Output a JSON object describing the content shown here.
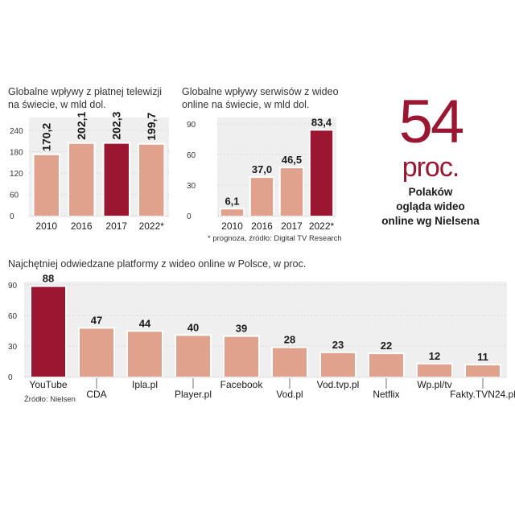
{
  "colors": {
    "bar": "#e0a28c",
    "highlight": "#9b1630",
    "panel": "#efefef",
    "grid": "#cfcfcf"
  },
  "stat": {
    "number": "54",
    "unit": "proc.",
    "caption_line1": "Polaków",
    "caption_line2": "ogląda wideo",
    "caption_line3": "online wg Nielsena"
  },
  "footnote": "* prognoza, źródło: Digital TV Research",
  "source": "Źródło: Nielsen",
  "chart_data": [
    {
      "type": "bar",
      "title_line1": "Globalne wpływy z płatnej telewizji",
      "title_line2": "na świecie, w mld dol.",
      "categories": [
        "2010",
        "2016",
        "2017",
        "2022*"
      ],
      "values": [
        170.2,
        202.1,
        202.3,
        199.7
      ],
      "value_labels": [
        "170,2",
        "202,1",
        "202,3",
        "199,7"
      ],
      "highlight_index": 2,
      "yticks": [
        "240",
        "180",
        "120",
        "60",
        "0"
      ],
      "ylim": [
        0,
        240
      ],
      "grid": true
    },
    {
      "type": "bar",
      "title_line1": "Globalne wpływy serwisów z wideo",
      "title_line2": "online na świecie, w mld dol.",
      "categories": [
        "2010",
        "2016",
        "2017",
        "2022*"
      ],
      "values": [
        6.1,
        37.0,
        46.5,
        83.4
      ],
      "value_labels": [
        "6,1",
        "37,0",
        "46,5",
        "83,4"
      ],
      "highlight_index": 3,
      "yticks": [
        "90",
        "60",
        "30",
        "0"
      ],
      "ylim": [
        0,
        90
      ],
      "grid": true
    },
    {
      "type": "bar",
      "title": "Najchętniej odwiedzane platformy z wideo online w Polsce, w proc.",
      "categories": [
        "YouTube",
        "CDA",
        "Ipla.pl",
        "Player.pl",
        "Facebook",
        "Vod.pl",
        "Vod.tvp.pl",
        "Netflix",
        "Wp.pl/tv",
        "Fakty.TVN24.pl"
      ],
      "values": [
        88,
        47,
        44,
        40,
        39,
        28,
        23,
        22,
        12,
        11
      ],
      "value_labels": [
        "88",
        "47",
        "44",
        "40",
        "39",
        "28",
        "23",
        "22",
        "12",
        "11"
      ],
      "highlight_index": 0,
      "yticks": [
        "90",
        "60",
        "30",
        "0"
      ],
      "ylim": [
        0,
        90
      ],
      "grid": true
    }
  ]
}
